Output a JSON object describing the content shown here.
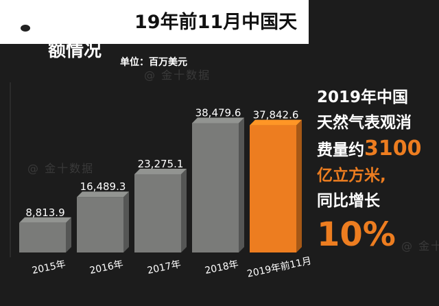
{
  "header": {
    "title_line1": "19年前11月中国天",
    "title_line2": "额情况",
    "unit": "单位：百万美元"
  },
  "panel": {
    "line1": "2019年中国",
    "line2": "天然气表观消",
    "line3_prefix": "费量约",
    "line3_value": "3100",
    "line4": "亿立方米,",
    "line5": "同比增长",
    "line6": "10%"
  },
  "watermark": "@ 金十数据",
  "colors": {
    "gray_bar": "#7a7b79",
    "highlight_bar": "#ed7d20",
    "background": "#1c1c1c"
  },
  "chart_data": {
    "type": "bar",
    "categories": [
      "2015年",
      "2016年",
      "2017年",
      "2018年",
      "2019年前11月"
    ],
    "values": [
      8813.9,
      16489.3,
      23275.1,
      38479.6,
      37842.6
    ],
    "value_labels": [
      "8,813.9",
      "16,489.3",
      "23,275.1",
      "38,479.6",
      "37,842.6"
    ],
    "highlight_index": 4,
    "ylim": [
      0,
      40000
    ],
    "grid": false,
    "bar_style": "3d"
  }
}
